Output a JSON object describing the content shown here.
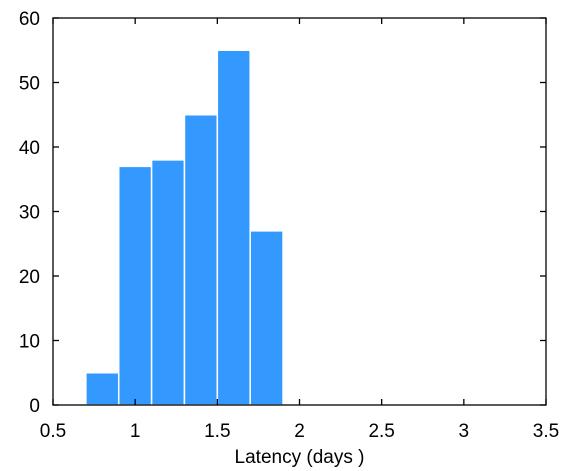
{
  "chart_data": {
    "type": "bar",
    "subtype": "histogram",
    "bins": [
      {
        "x0": 0.7,
        "x1": 0.9,
        "value": 5
      },
      {
        "x0": 0.9,
        "x1": 1.1,
        "value": 37
      },
      {
        "x0": 1.1,
        "x1": 1.3,
        "value": 38
      },
      {
        "x0": 1.3,
        "x1": 1.5,
        "value": 45
      },
      {
        "x0": 1.5,
        "x1": 1.7,
        "value": 55
      },
      {
        "x0": 1.7,
        "x1": 1.9,
        "value": 27
      }
    ],
    "xlabel": "Latency (days )",
    "ylabel": "",
    "title": "",
    "xlim": [
      0.5,
      3.5
    ],
    "ylim": [
      0,
      60
    ],
    "xticks": [
      0.5,
      1,
      1.5,
      2,
      2.5,
      3,
      3.5
    ],
    "xtick_labels": [
      "0.5",
      "1",
      "1.5",
      "2",
      "2.5",
      "3",
      "3.5"
    ],
    "yticks": [
      0,
      10,
      20,
      30,
      40,
      50,
      60
    ],
    "ytick_labels": [
      "0",
      "10",
      "20",
      "30",
      "40",
      "50",
      "60"
    ],
    "grid": false,
    "colors": {
      "bar": "#3399ff",
      "bar_edge": "#ffffff",
      "axis": "#000000"
    }
  }
}
